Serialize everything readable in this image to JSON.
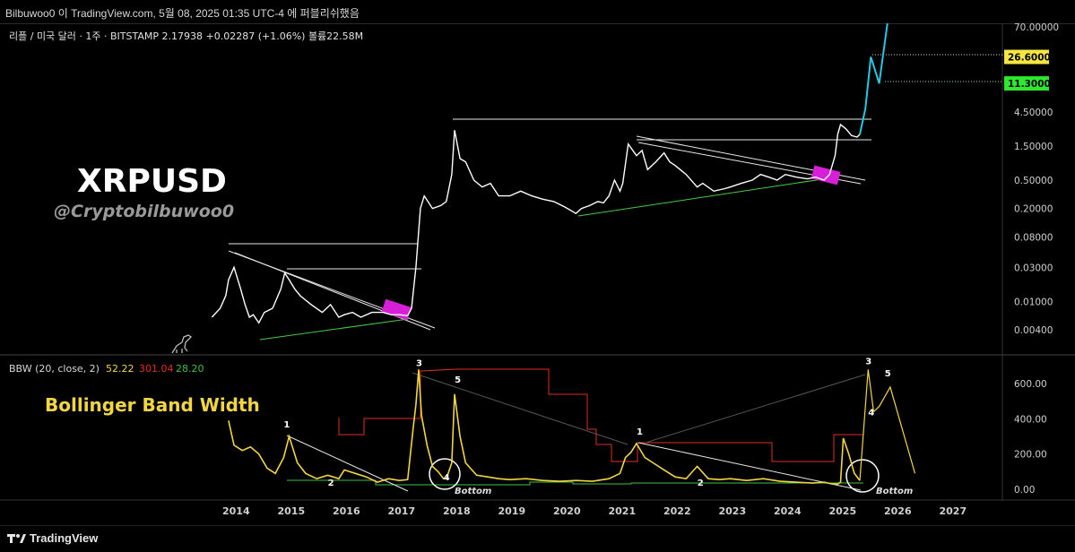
{
  "header": {
    "publish_line": "Bilbuwoo0 이 TradingView.com, 5월 08, 2025 01:35 UTC-4 에 퍼블리쉬했음"
  },
  "legend": {
    "symbol_line": "리플 / 미국 달러 · 1주 · BITSTAMP  2.17938  +0.02287 (+1.06%)  볼륨22.58M",
    "bbw_name": "BBW (20, close, 2)",
    "bbw_v1": "52.22",
    "bbw_v2": "301.04",
    "bbw_v3": "28.20"
  },
  "overlay": {
    "title": "XRPUSD",
    "handle": "@Cryptobilbuwoo0",
    "indicator_title": "Bollinger Band Width",
    "bottom_label_1": "Bottom",
    "bottom_label_2": "Bottom"
  },
  "footer": {
    "brand": "TradingView"
  },
  "colors": {
    "background": "#000000",
    "price_line": "#ffffff",
    "projection": "#29c7e6",
    "bbw_line": "#f2d640",
    "bbw_high": "#e0301e",
    "bbw_low": "#3fbf3f",
    "highlight": "#d61fd6",
    "support": "#44cc44",
    "label_yellow_bg": "#f5e642",
    "label_green_bg": "#2ee82e"
  },
  "chart_data": [
    {
      "type": "line",
      "panel": "price",
      "scale": "log",
      "title": "",
      "x_ticks": [
        "2014",
        "2015",
        "2016",
        "2017",
        "2018",
        "2019",
        "2020",
        "2021",
        "2022",
        "2023",
        "2024",
        "2025",
        "2026",
        "2027"
      ],
      "y_ticks": [
        "70.00000",
        "4.50000",
        "1.50000",
        "0.50000",
        "0.20000",
        "0.08000",
        "0.03000",
        "0.01000",
        "0.00400"
      ],
      "y_tick_values": [
        70,
        4.5,
        1.5,
        0.5,
        0.2,
        0.08,
        0.03,
        0.01,
        0.004
      ],
      "price_labels": [
        {
          "text": "26.60000",
          "value": 26.6,
          "color": "yellow"
        },
        {
          "text": "11.30000",
          "value": 11.3,
          "color": "green"
        }
      ],
      "series": [
        {
          "name": "",
          "x": [
            2013.6,
            2013.75,
            2013.85,
            2013.9,
            2014.0,
            2014.12,
            2014.2,
            2014.28,
            2014.35,
            2014.45,
            2014.55,
            2014.7,
            2014.85,
            2014.92,
            2015.0,
            2015.1,
            2015.2,
            2015.4,
            2015.6,
            2015.75,
            2015.9,
            2016.0,
            2016.15,
            2016.3,
            2016.5,
            2016.7,
            2016.85,
            2017.0,
            2017.15,
            2017.22,
            2017.3,
            2017.38,
            2017.45,
            2017.6,
            2017.75,
            2017.85,
            2017.95,
            2018.0,
            2018.1,
            2018.2,
            2018.35,
            2018.5,
            2018.65,
            2018.8,
            2019.0,
            2019.2,
            2019.4,
            2019.6,
            2019.8,
            2020.0,
            2020.15,
            2020.2,
            2020.3,
            2020.45,
            2020.6,
            2020.7,
            2020.8,
            2020.9,
            2021.0,
            2021.05,
            2021.15,
            2021.3,
            2021.4,
            2021.5,
            2021.65,
            2021.8,
            2021.9,
            2022.0,
            2022.2,
            2022.4,
            2022.5,
            2022.7,
            2022.9,
            2023.0,
            2023.2,
            2023.4,
            2023.55,
            2023.7,
            2023.85,
            2024.0,
            2024.2,
            2024.4,
            2024.55,
            2024.7,
            2024.8,
            2024.9,
            2024.95,
            2025.0,
            2025.1,
            2025.2,
            2025.3,
            2025.35
          ],
          "y": [
            0.006,
            0.008,
            0.012,
            0.02,
            0.03,
            0.015,
            0.009,
            0.006,
            0.0065,
            0.005,
            0.007,
            0.008,
            0.015,
            0.025,
            0.02,
            0.015,
            0.012,
            0.009,
            0.007,
            0.009,
            0.006,
            0.0065,
            0.007,
            0.006,
            0.007,
            0.007,
            0.0065,
            0.0065,
            0.0063,
            0.008,
            0.03,
            0.2,
            0.3,
            0.2,
            0.22,
            0.25,
            0.6,
            2.5,
            1.0,
            0.9,
            0.5,
            0.4,
            0.45,
            0.3,
            0.3,
            0.35,
            0.3,
            0.27,
            0.25,
            0.21,
            0.18,
            0.17,
            0.2,
            0.22,
            0.25,
            0.24,
            0.3,
            0.5,
            0.35,
            0.45,
            1.6,
            1.1,
            1.3,
            0.7,
            0.9,
            1.2,
            0.9,
            0.8,
            0.6,
            0.4,
            0.45,
            0.35,
            0.38,
            0.4,
            0.45,
            0.5,
            0.6,
            0.55,
            0.5,
            0.6,
            0.55,
            0.52,
            0.55,
            0.5,
            0.6,
            1.1,
            2.2,
            3.0,
            2.6,
            2.1,
            2.0,
            2.18
          ]
        },
        {
          "name": "",
          "x": [
            2025.35,
            2025.45,
            2025.55,
            2025.7,
            2025.85
          ],
          "y": [
            2.18,
            5.0,
            26.6,
            11.3,
            120.0
          ]
        }
      ]
    },
    {
      "type": "line",
      "panel": "indicator",
      "title": "Bollinger Band Width",
      "y_ticks": [
        "600.00",
        "400.00",
        "200.00",
        "0.00"
      ],
      "y_tick_values": [
        600,
        400,
        200,
        0
      ],
      "ylim": [
        -20,
        720
      ],
      "wave_labels": [
        {
          "text": "1",
          "x": 2014.95,
          "y": 350
        },
        {
          "text": "2",
          "x": 2015.75,
          "y": 20
        },
        {
          "text": "3",
          "x": 2017.35,
          "y": 700
        },
        {
          "text": "4",
          "x": 2017.85,
          "y": 50
        },
        {
          "text": "5",
          "x": 2018.05,
          "y": 605
        },
        {
          "text": "1",
          "x": 2021.35,
          "y": 310
        },
        {
          "text": "2",
          "x": 2022.45,
          "y": 20
        },
        {
          "text": "3",
          "x": 2025.5,
          "y": 710
        },
        {
          "text": "4",
          "x": 2025.55,
          "y": 420
        },
        {
          "text": "5",
          "x": 2025.85,
          "y": 640
        }
      ],
      "series": [
        {
          "name": "",
          "x": [
            2013.9,
            2014.0,
            2014.15,
            2014.3,
            2014.45,
            2014.6,
            2014.75,
            2014.9,
            2015.0,
            2015.15,
            2015.3,
            2015.5,
            2015.7,
            2015.9,
            2016.0,
            2016.2,
            2016.4,
            2016.6,
            2016.8,
            2017.0,
            2017.15,
            2017.25,
            2017.3,
            2017.35,
            2017.4,
            2017.5,
            2017.6,
            2017.7,
            2017.8,
            2017.85,
            2017.95,
            2018.0,
            2018.1,
            2018.2,
            2018.4,
            2018.6,
            2018.8,
            2019.0,
            2019.3,
            2019.6,
            2019.9,
            2020.2,
            2020.5,
            2020.8,
            2021.0,
            2021.1,
            2021.2,
            2021.3,
            2021.45,
            2021.6,
            2021.8,
            2022.0,
            2022.2,
            2022.4,
            2022.6,
            2022.8,
            2023.0,
            2023.3,
            2023.6,
            2023.9,
            2024.2,
            2024.5,
            2024.7,
            2024.85,
            2024.95,
            2025.0,
            2025.05,
            2025.15,
            2025.25,
            2025.35
          ],
          "y": [
            390,
            250,
            220,
            240,
            200,
            120,
            90,
            180,
            300,
            150,
            90,
            60,
            80,
            60,
            110,
            90,
            70,
            40,
            60,
            50,
            55,
            350,
            480,
            680,
            420,
            250,
            130,
            100,
            60,
            60,
            150,
            540,
            300,
            150,
            80,
            70,
            60,
            55,
            60,
            50,
            45,
            50,
            45,
            60,
            90,
            180,
            210,
            260,
            180,
            150,
            110,
            70,
            60,
            130,
            60,
            55,
            60,
            50,
            60,
            45,
            40,
            35,
            40,
            30,
            30,
            40,
            290,
            200,
            90,
            50
          ]
        },
        {
          "name": "",
          "x": [
            2025.35,
            2025.5,
            2025.6,
            2025.7,
            2025.9,
            2026.35
          ],
          "y": [
            50,
            680,
            440,
            470,
            580,
            90
          ]
        }
      ]
    }
  ]
}
